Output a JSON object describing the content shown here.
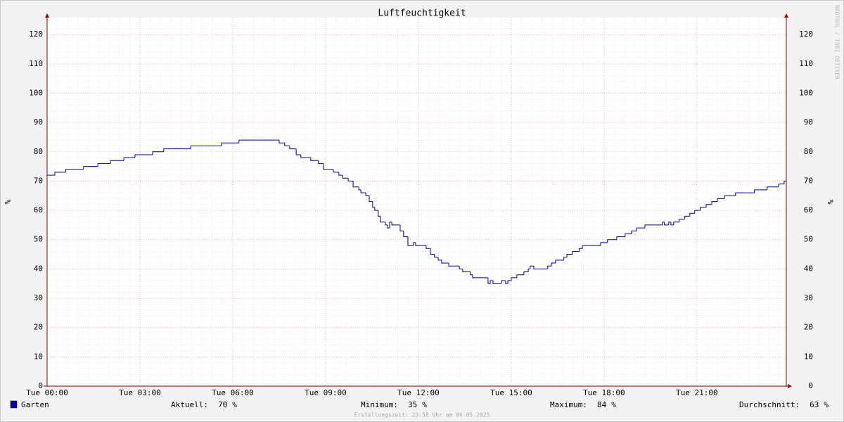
{
  "chart_data": {
    "type": "line",
    "title": "Luftfeuchtigkeit",
    "ylabel": "%",
    "watermark": "RRDTOOL / TOBI OETIKER",
    "footer": "Erstellungszeit: 23:58 Uhr am 06.05.2025",
    "xlim": [
      0,
      23.89
    ],
    "xticks": [
      {
        "value": 0,
        "label": "Tue 00:00"
      },
      {
        "value": 3,
        "label": "Tue 03:00"
      },
      {
        "value": 6,
        "label": "Tue 06:00"
      },
      {
        "value": 9,
        "label": "Tue 09:00"
      },
      {
        "value": 12,
        "label": "Tue 12:00"
      },
      {
        "value": 15,
        "label": "Tue 15:00"
      },
      {
        "value": 18,
        "label": "Tue 18:00"
      },
      {
        "value": 21,
        "label": "Tue 21:00"
      }
    ],
    "ylim": [
      0,
      125.8
    ],
    "yticks": [
      0,
      10,
      20,
      30,
      40,
      50,
      60,
      70,
      80,
      90,
      100,
      110,
      120
    ],
    "grid": true,
    "x": [
      0,
      0.25,
      0.6,
      1.18,
      1.64,
      2.05,
      2.48,
      2.84,
      3.41,
      3.77,
      4.64,
      5.64,
      6.2,
      7.5,
      7.68,
      7.84,
      8.05,
      8.2,
      8.52,
      8.77,
      8.93,
      9.25,
      9.43,
      9.55,
      9.73,
      9.89,
      10.07,
      10.14,
      10.3,
      10.41,
      10.52,
      10.59,
      10.7,
      10.77,
      10.93,
      11.0,
      11.07,
      11.14,
      11.41,
      11.52,
      11.66,
      11.84,
      11.91,
      12.25,
      12.39,
      12.52,
      12.64,
      12.75,
      12.98,
      13.32,
      13.43,
      13.68,
      13.75,
      14.25,
      14.32,
      14.41,
      14.68,
      14.82,
      14.89,
      15.0,
      15.18,
      15.41,
      15.55,
      15.61,
      15.73,
      16.18,
      16.3,
      16.43,
      16.7,
      16.8,
      16.98,
      17.2,
      17.3,
      17.89,
      18.11,
      18.41,
      18.68,
      18.89,
      19.05,
      19.32,
      19.89,
      19.95,
      20.09,
      20.16,
      20.25,
      20.43,
      20.61,
      20.77,
      20.93,
      21.11,
      21.3,
      21.48,
      21.66,
      21.89,
      22.25,
      22.86,
      23.27,
      23.64,
      23.82
    ],
    "series": [
      {
        "name": "Garten",
        "color": "#000080",
        "legend_color": "#0000a0",
        "values": [
          72,
          73,
          74,
          75,
          76,
          77,
          78,
          79,
          80,
          81,
          82,
          83,
          84,
          83,
          82,
          81,
          79,
          78,
          77,
          76,
          74,
          73,
          72,
          71,
          70,
          68,
          67,
          66,
          65,
          63,
          61,
          60,
          58,
          56,
          55,
          54,
          56,
          55,
          53,
          51,
          48,
          49,
          48,
          47,
          45,
          44,
          43,
          42,
          41,
          40,
          39,
          38,
          37,
          35,
          36,
          35,
          36,
          35,
          36,
          37,
          38,
          39,
          40,
          41,
          40,
          41,
          42,
          43,
          44,
          45,
          46,
          47,
          48,
          49,
          50,
          51,
          52,
          53,
          54,
          55,
          56,
          55,
          56,
          55,
          56,
          57,
          58,
          59,
          60,
          61,
          62,
          63,
          64,
          65,
          66,
          67,
          68,
          69,
          70
        ]
      }
    ],
    "stats": [
      {
        "label": "Aktuell:",
        "value": 70,
        "unit": "%"
      },
      {
        "label": "Minimum:",
        "value": 35,
        "unit": "%"
      },
      {
        "label": "Maximum:",
        "value": 84,
        "unit": "%"
      },
      {
        "label": "Durchschnitt:",
        "value": 63,
        "unit": "%"
      }
    ]
  }
}
